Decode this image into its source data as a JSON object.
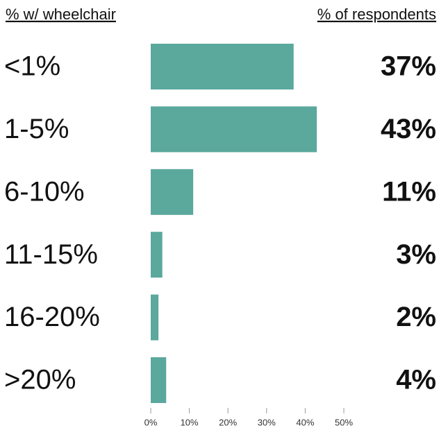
{
  "chart_data": {
    "type": "bar",
    "orientation": "horizontal",
    "category_header": "% w/ wheelchair",
    "value_header": "% of respondents",
    "categories": [
      "<1%",
      "1-5%",
      "6-10%",
      "11-15%",
      "16-20%",
      ">20%"
    ],
    "values": [
      37,
      43,
      11,
      3,
      2,
      4
    ],
    "value_labels": [
      "37%",
      "43%",
      "11%",
      "3%",
      "2%",
      "4%"
    ],
    "color": "#5ba89d",
    "xlim": [
      0,
      50
    ],
    "xticks": [
      {
        "value": 0,
        "label": "0%"
      },
      {
        "value": 10,
        "label": "10%"
      },
      {
        "value": 20,
        "label": "20%"
      },
      {
        "value": 30,
        "label": "30%"
      },
      {
        "value": 40,
        "label": "40%"
      },
      {
        "value": 50,
        "label": "50%"
      }
    ]
  }
}
